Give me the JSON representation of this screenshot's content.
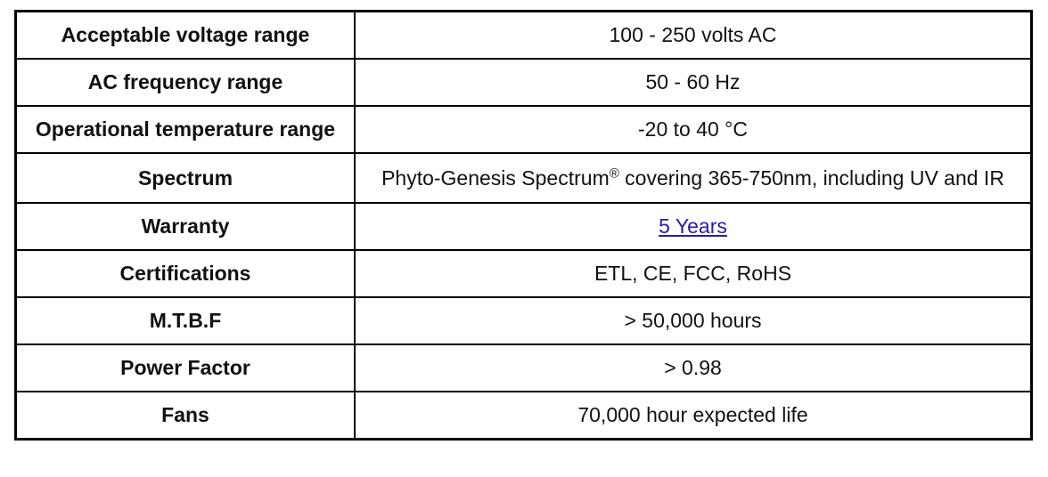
{
  "rows": [
    {
      "label": "Acceptable voltage range",
      "value": "100 - 250 volts AC"
    },
    {
      "label": "AC frequency range",
      "value": "50 - 60 Hz"
    },
    {
      "label": "Operational temperature range",
      "value": "-20 to 40 °C"
    },
    {
      "label": "Spectrum",
      "value_prefix": "Phyto-Genesis Spectrum",
      "value_mark": "®",
      "value_suffix": " covering 365-750nm, including UV and IR"
    },
    {
      "label": "Warranty",
      "value": "5 Years"
    },
    {
      "label": "Certifications",
      "value": "ETL, CE, FCC, RoHS"
    },
    {
      "label": "M.T.B.F",
      "value": "> 50,000 hours"
    },
    {
      "label": "Power Factor",
      "value": "> 0.98"
    },
    {
      "label": "Fans",
      "value": "70,000 hour expected life"
    }
  ],
  "colors": {
    "link": "#2a1aa8",
    "border": "#000000",
    "text": "#111111"
  }
}
